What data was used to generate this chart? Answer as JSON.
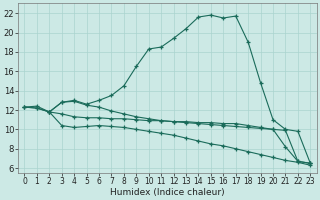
{
  "xlabel": "Humidex (Indice chaleur)",
  "bg_color": "#cce9e5",
  "grid_color": "#aad4cf",
  "line_color": "#1a6b5a",
  "xlim": [
    -0.5,
    23.5
  ],
  "ylim": [
    5.5,
    23.0
  ],
  "xticks": [
    0,
    1,
    2,
    3,
    4,
    5,
    6,
    7,
    8,
    9,
    10,
    11,
    12,
    13,
    14,
    15,
    16,
    17,
    18,
    19,
    20,
    21,
    22,
    23
  ],
  "yticks": [
    6,
    8,
    10,
    12,
    14,
    16,
    18,
    20,
    22
  ],
  "line1_x": [
    0,
    1,
    2,
    3,
    4,
    5,
    6,
    7,
    8,
    9,
    10,
    11,
    12,
    13,
    14,
    15,
    16,
    17,
    18,
    19,
    20,
    21,
    22,
    23
  ],
  "line1_y": [
    12.3,
    12.4,
    11.8,
    12.8,
    13.0,
    12.6,
    13.0,
    13.5,
    14.5,
    16.5,
    18.3,
    18.5,
    19.4,
    20.4,
    21.6,
    21.8,
    21.5,
    21.7,
    19.0,
    14.8,
    11.0,
    10.0,
    9.8,
    6.5
  ],
  "line2_x": [
    0,
    1,
    2,
    3,
    4,
    5,
    6,
    7,
    8,
    9,
    10,
    11,
    12,
    13,
    14,
    15,
    16,
    17,
    18,
    19,
    20,
    21,
    22,
    23
  ],
  "line2_y": [
    12.3,
    12.2,
    11.8,
    11.6,
    11.3,
    11.2,
    11.2,
    11.1,
    11.1,
    11.0,
    10.9,
    10.9,
    10.8,
    10.8,
    10.7,
    10.7,
    10.6,
    10.6,
    10.4,
    10.2,
    10.0,
    9.9,
    6.7,
    6.5
  ],
  "line3_x": [
    0,
    1,
    2,
    3,
    4,
    5,
    6,
    7,
    8,
    9,
    10,
    11,
    12,
    13,
    14,
    15,
    16,
    17,
    18,
    19,
    20,
    21,
    22,
    23
  ],
  "line3_y": [
    12.3,
    12.2,
    11.8,
    10.4,
    10.2,
    10.3,
    10.4,
    10.3,
    10.2,
    10.0,
    9.8,
    9.6,
    9.4,
    9.1,
    8.8,
    8.5,
    8.3,
    8.0,
    7.7,
    7.4,
    7.1,
    6.8,
    6.6,
    6.3
  ],
  "line4_x": [
    2,
    3,
    4,
    5,
    6,
    7,
    8,
    9,
    10,
    11,
    12,
    13,
    14,
    15,
    16,
    17,
    18,
    19,
    20,
    21,
    22,
    23
  ],
  "line4_y": [
    11.8,
    12.8,
    12.9,
    12.5,
    12.3,
    11.9,
    11.6,
    11.3,
    11.1,
    10.9,
    10.8,
    10.7,
    10.6,
    10.5,
    10.4,
    10.3,
    10.2,
    10.1,
    10.0,
    8.2,
    6.7,
    6.5
  ]
}
